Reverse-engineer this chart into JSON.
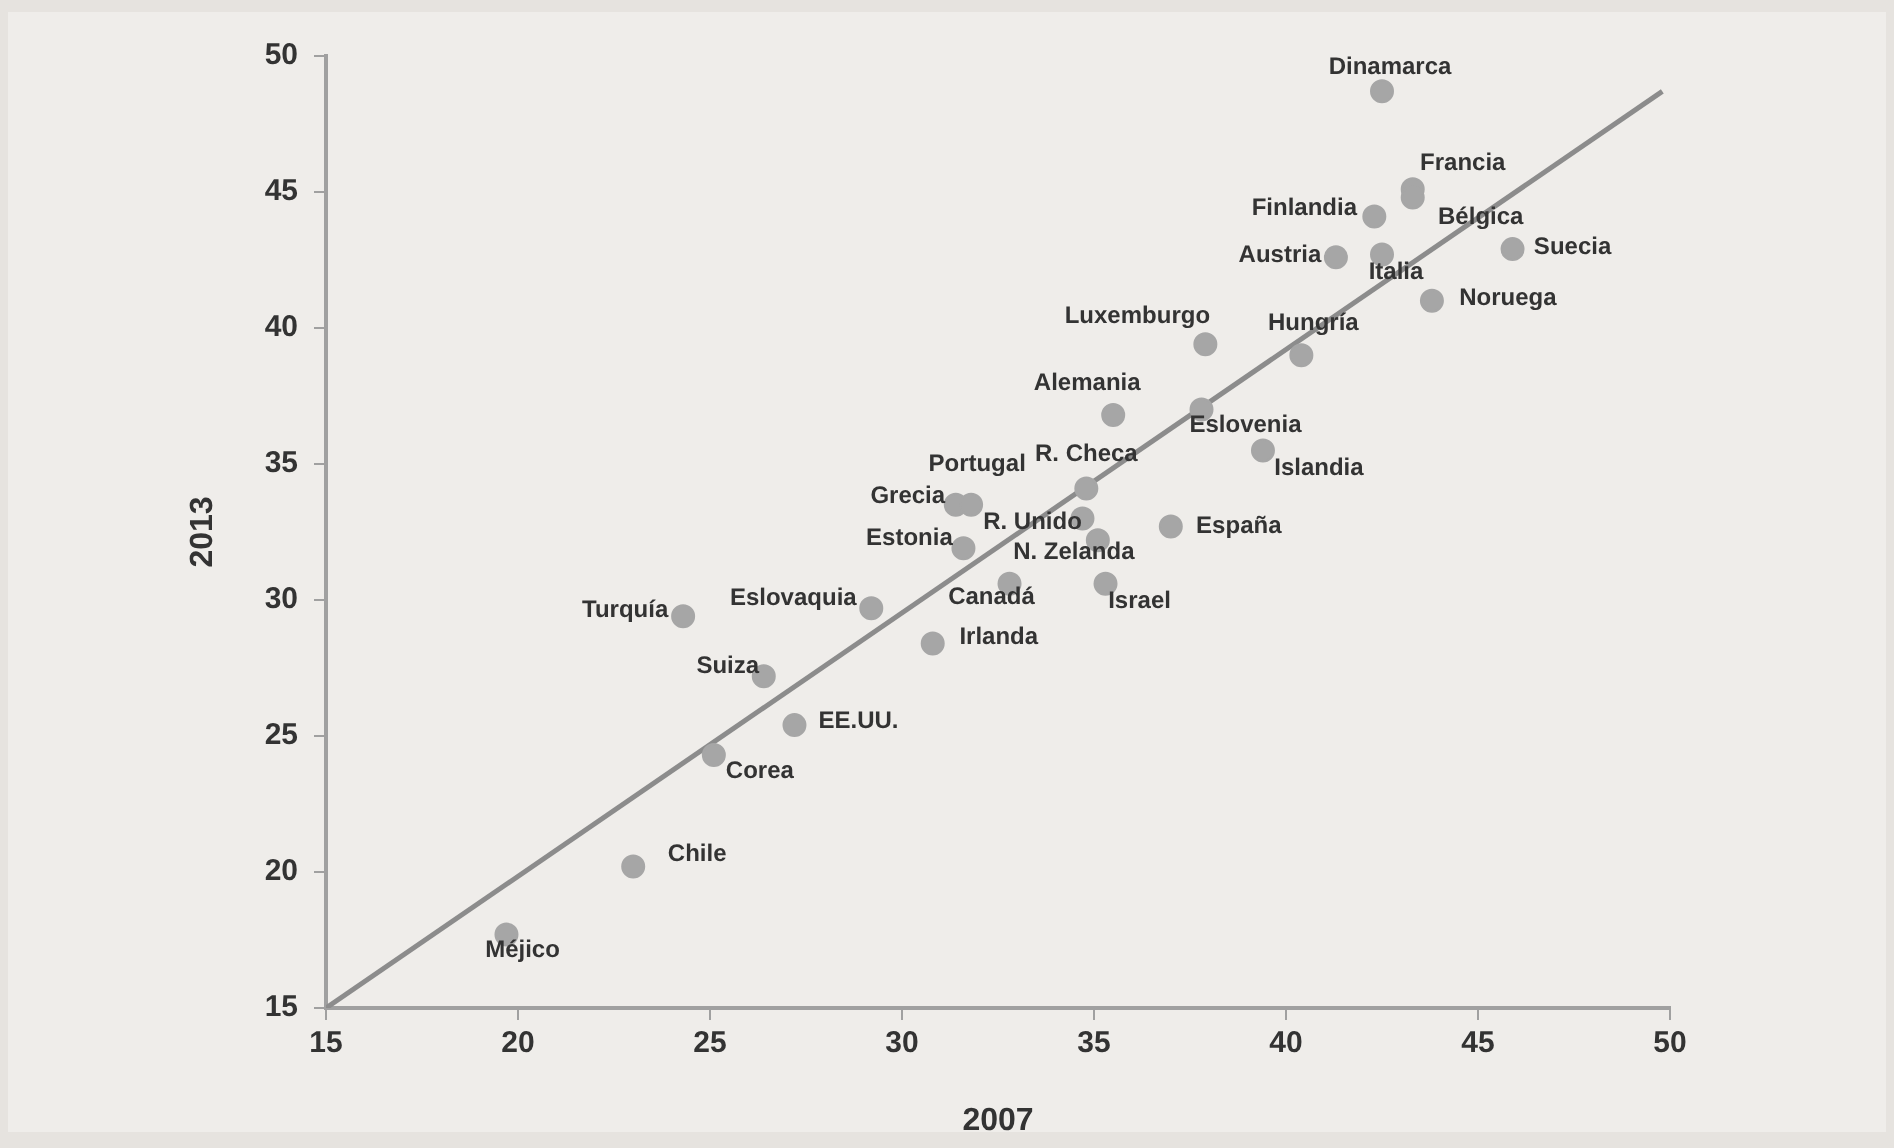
{
  "chart_data": {
    "type": "scatter",
    "xlabel": "2007",
    "ylabel": "2013",
    "xlim": [
      15,
      50
    ],
    "ylim": [
      15,
      50
    ],
    "xticks": [
      15,
      20,
      25,
      30,
      35,
      40,
      45,
      50
    ],
    "yticks": [
      15,
      20,
      25,
      30,
      35,
      40,
      45,
      50
    ],
    "grid": false,
    "legend": false,
    "marker": "circle",
    "series": [
      {
        "color": "#a6a6a6",
        "x": [
          19.7,
          23.0,
          25.1,
          27.2,
          26.4,
          24.3,
          29.2,
          30.8,
          31.6,
          31.4,
          31.8,
          34.8,
          34.7,
          35.1,
          32.8,
          35.3,
          37.0,
          35.5,
          37.9,
          37.8,
          39.4,
          40.4,
          42.5,
          43.3,
          43.3,
          42.3,
          41.3,
          42.5,
          45.9,
          43.8
        ],
        "values": [
          17.7,
          20.2,
          24.3,
          25.4,
          27.2,
          29.4,
          29.7,
          28.4,
          31.9,
          33.5,
          33.5,
          34.1,
          33.0,
          32.2,
          30.6,
          30.6,
          32.7,
          36.8,
          39.4,
          37.0,
          35.5,
          39.0,
          48.7,
          45.1,
          44.8,
          44.1,
          42.6,
          42.7,
          42.9,
          41.0
        ]
      },
      {
        "type": "line",
        "color": "#8c8c8c",
        "x": [
          15,
          49.8
        ],
        "values": [
          15,
          48.7
        ],
        "marker": "none"
      }
    ],
    "annotations": [
      {
        "text": "Méjico",
        "x": 19.7,
        "y": 17.7
      },
      {
        "text": "Chile",
        "x": 23.0,
        "y": 20.2
      },
      {
        "text": "Corea",
        "x": 25.1,
        "y": 24.3
      },
      {
        "text": "EE.UU.",
        "x": 27.2,
        "y": 25.4
      },
      {
        "text": "Suiza",
        "x": 26.4,
        "y": 27.2
      },
      {
        "text": "Turquía",
        "x": 24.3,
        "y": 29.4
      },
      {
        "text": "Eslovaquia",
        "x": 29.2,
        "y": 29.7
      },
      {
        "text": "Irlanda",
        "x": 30.8,
        "y": 28.4
      },
      {
        "text": "Estonia",
        "x": 31.6,
        "y": 31.9
      },
      {
        "text": "Grecia",
        "x": 31.4,
        "y": 33.5
      },
      {
        "text": "Portugal",
        "x": 31.8,
        "y": 33.5
      },
      {
        "text": "R. Checa",
        "x": 34.8,
        "y": 34.1
      },
      {
        "text": "R. Unido",
        "x": 34.7,
        "y": 33.0
      },
      {
        "text": "N. Zelanda",
        "x": 35.1,
        "y": 32.2
      },
      {
        "text": "Canadá",
        "x": 32.8,
        "y": 30.6
      },
      {
        "text": "Israel",
        "x": 35.3,
        "y": 30.6
      },
      {
        "text": "España",
        "x": 37.0,
        "y": 32.7
      },
      {
        "text": "Alemania",
        "x": 35.5,
        "y": 36.8
      },
      {
        "text": "Luxemburgo",
        "x": 37.9,
        "y": 39.4
      },
      {
        "text": "Eslovenia",
        "x": 37.8,
        "y": 37.0
      },
      {
        "text": "Islandia",
        "x": 39.4,
        "y": 35.5
      },
      {
        "text": "Hungría",
        "x": 40.4,
        "y": 39.0
      },
      {
        "text": "Dinamarca",
        "x": 42.5,
        "y": 48.7
      },
      {
        "text": "Francia",
        "x": 43.3,
        "y": 45.1
      },
      {
        "text": "Bélgica",
        "x": 43.3,
        "y": 44.8
      },
      {
        "text": "Finlandia",
        "x": 42.3,
        "y": 44.1
      },
      {
        "text": "Austria",
        "x": 41.3,
        "y": 42.6
      },
      {
        "text": "Italia",
        "x": 42.5,
        "y": 42.7
      },
      {
        "text": "Suecia",
        "x": 45.9,
        "y": 42.9
      },
      {
        "text": "Noruega",
        "x": 43.8,
        "y": 41.0
      }
    ]
  }
}
